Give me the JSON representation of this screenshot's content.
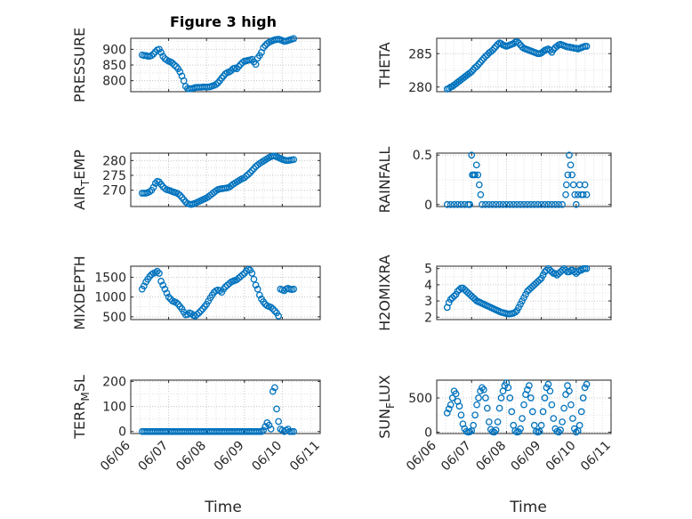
{
  "figure_title": "Figure 3 high",
  "x_axis_label": "Time",
  "x_tick_labels": [
    "06/06",
    "06/07",
    "06/08",
    "06/09",
    "06/10",
    "06/11"
  ],
  "marker_color": "#0072BD",
  "chart_data": [
    {
      "type": "scatter",
      "title": "Figure 3 high",
      "ylabel": "PRESSURE",
      "xlabel": "",
      "yticks": [
        800,
        850,
        900
      ],
      "ylim": [
        765,
        935
      ],
      "grid": true,
      "x": [
        6.3,
        6.35,
        6.4,
        6.45,
        6.5,
        6.55,
        6.6,
        6.65,
        6.7,
        6.75,
        6.8,
        6.85,
        6.9,
        6.95,
        7.0,
        7.05,
        7.1,
        7.15,
        7.2,
        7.25,
        7.3,
        7.35,
        7.4,
        7.45,
        7.5,
        7.55,
        7.6,
        7.65,
        7.7,
        7.75,
        7.8,
        7.85,
        7.9,
        7.95,
        8.0,
        8.05,
        8.1,
        8.15,
        8.2,
        8.25,
        8.3,
        8.35,
        8.4,
        8.45,
        8.5,
        8.55,
        8.6,
        8.65,
        8.7,
        8.75,
        8.8,
        8.85,
        8.9,
        8.95,
        9.0,
        9.05,
        9.1,
        9.15,
        9.2,
        9.25,
        9.3,
        9.35,
        9.4,
        9.45,
        9.5,
        9.55,
        9.6,
        9.65,
        9.7,
        9.75,
        9.8,
        9.85,
        9.9,
        9.95,
        10.0,
        10.05,
        10.1,
        10.15,
        10.2,
        10.25,
        10.3
      ],
      "y": [
        882,
        880,
        880,
        878,
        878,
        880,
        885,
        892,
        898,
        900,
        890,
        878,
        870,
        866,
        862,
        860,
        856,
        850,
        845,
        838,
        828,
        815,
        800,
        782,
        775,
        774,
        775,
        776,
        778,
        779,
        779,
        779,
        780,
        780,
        780,
        780,
        781,
        783,
        785,
        788,
        793,
        800,
        808,
        815,
        822,
        826,
        828,
        832,
        838,
        840,
        838,
        845,
        852,
        858,
        862,
        863,
        865,
        866,
        868,
        860,
        852,
        872,
        880,
        890,
        905,
        912,
        918,
        922,
        925,
        928,
        930,
        931,
        932,
        930,
        928,
        925,
        926,
        928,
        930,
        932,
        934
      ]
    },
    {
      "type": "scatter",
      "ylabel": "THETA",
      "xlabel": "",
      "yticks": [
        280,
        285
      ],
      "ylim": [
        279.3,
        287.3
      ],
      "grid": true,
      "x": [
        6.3,
        6.35,
        6.4,
        6.45,
        6.5,
        6.55,
        6.6,
        6.65,
        6.7,
        6.75,
        6.8,
        6.85,
        6.9,
        6.95,
        7.0,
        7.05,
        7.1,
        7.15,
        7.2,
        7.25,
        7.3,
        7.35,
        7.4,
        7.45,
        7.5,
        7.55,
        7.6,
        7.65,
        7.7,
        7.75,
        7.8,
        7.85,
        7.9,
        7.95,
        8.0,
        8.05,
        8.1,
        8.15,
        8.2,
        8.25,
        8.3,
        8.35,
        8.4,
        8.45,
        8.5,
        8.55,
        8.6,
        8.65,
        8.7,
        8.75,
        8.8,
        8.85,
        8.9,
        8.95,
        9.0,
        9.05,
        9.1,
        9.15,
        9.2,
        9.25,
        9.3,
        9.35,
        9.4,
        9.45,
        9.5,
        9.55,
        9.6,
        9.65,
        9.7,
        9.75,
        9.8,
        9.85,
        9.9,
        9.95,
        10.0,
        10.05,
        10.1,
        10.15,
        10.2,
        10.25,
        10.3
      ],
      "y": [
        279.7,
        279.8,
        280.0,
        280.1,
        280.3,
        280.5,
        280.7,
        280.9,
        281.1,
        281.3,
        281.5,
        281.7,
        281.9,
        282.1,
        282.3,
        282.6,
        282.9,
        283.1,
        283.4,
        283.7,
        284.0,
        284.3,
        284.6,
        284.8,
        285.1,
        285.3,
        285.5,
        285.8,
        286.1,
        286.4,
        286.6,
        286.5,
        286.3,
        286.2,
        286.1,
        286.2,
        286.3,
        286.4,
        286.5,
        286.7,
        286.8,
        286.6,
        286.3,
        286.0,
        285.8,
        285.7,
        285.6,
        285.5,
        285.4,
        285.3,
        285.2,
        285.1,
        285.0,
        285.0,
        285.1,
        285.3,
        285.5,
        285.6,
        285.7,
        285.5,
        285.2,
        285.6,
        285.9,
        286.1,
        286.3,
        286.4,
        286.3,
        286.2,
        286.1,
        286.0,
        286.0,
        285.9,
        285.9,
        285.8,
        285.8,
        285.7,
        285.8,
        285.9,
        286.0,
        286.1,
        286.1
      ]
    },
    {
      "type": "scatter",
      "ylabel": "AIR_TEMP",
      "xlabel": "",
      "yticks": [
        270,
        275,
        280
      ],
      "ylim": [
        264.5,
        282.5
      ],
      "grid": true,
      "x": [
        6.3,
        6.35,
        6.4,
        6.45,
        6.5,
        6.55,
        6.6,
        6.65,
        6.7,
        6.75,
        6.8,
        6.85,
        6.9,
        6.95,
        7.0,
        7.05,
        7.1,
        7.15,
        7.2,
        7.25,
        7.3,
        7.35,
        7.4,
        7.45,
        7.5,
        7.55,
        7.6,
        7.65,
        7.7,
        7.75,
        7.8,
        7.85,
        7.9,
        7.95,
        8.0,
        8.05,
        8.1,
        8.15,
        8.2,
        8.25,
        8.3,
        8.35,
        8.4,
        8.45,
        8.5,
        8.55,
        8.6,
        8.65,
        8.7,
        8.75,
        8.8,
        8.85,
        8.9,
        8.95,
        9.0,
        9.05,
        9.1,
        9.15,
        9.2,
        9.25,
        9.3,
        9.35,
        9.4,
        9.45,
        9.5,
        9.55,
        9.6,
        9.65,
        9.7,
        9.75,
        9.8,
        9.85,
        9.9,
        9.95,
        10.0,
        10.05,
        10.1,
        10.15,
        10.2,
        10.25,
        10.3
      ],
      "y": [
        269.0,
        269.0,
        269.0,
        269.2,
        269.5,
        270.0,
        271.0,
        272.3,
        273.0,
        272.8,
        272.0,
        271.2,
        270.6,
        270.2,
        270.0,
        269.8,
        269.5,
        269.3,
        269.1,
        268.8,
        268.3,
        267.6,
        266.8,
        266.0,
        265.5,
        265.3,
        265.2,
        265.4,
        265.6,
        265.9,
        266.2,
        266.5,
        266.8,
        267.1,
        267.4,
        267.8,
        268.3,
        268.8,
        269.3,
        269.8,
        270.2,
        270.4,
        270.5,
        270.6,
        270.7,
        270.8,
        271.0,
        271.5,
        272.0,
        272.4,
        272.8,
        273.2,
        273.6,
        273.9,
        274.2,
        274.8,
        275.3,
        275.9,
        276.6,
        277.3,
        278.0,
        278.5,
        279.0,
        279.4,
        279.8,
        280.2,
        280.6,
        281.0,
        281.3,
        281.5,
        281.5,
        281.3,
        281.0,
        280.7,
        280.4,
        280.2,
        280.0,
        280.0,
        280.1,
        280.2,
        280.3
      ]
    },
    {
      "type": "scatter",
      "ylabel": "RAINFALL",
      "xlabel": "",
      "yticks": [
        0,
        0.5
      ],
      "ylim": [
        -0.02,
        0.52
      ],
      "grid": true,
      "x": [
        6.3,
        6.4,
        6.5,
        6.6,
        6.7,
        6.8,
        6.9,
        6.95,
        7.0,
        7.02,
        7.06,
        7.1,
        7.14,
        7.18,
        7.22,
        7.26,
        7.3,
        7.4,
        7.5,
        7.6,
        7.7,
        7.8,
        7.9,
        8.0,
        8.1,
        8.2,
        8.3,
        8.4,
        8.5,
        8.6,
        8.7,
        8.8,
        8.9,
        9.0,
        9.1,
        9.2,
        9.3,
        9.4,
        9.5,
        9.6,
        9.7,
        9.72,
        9.76,
        9.8,
        9.84,
        9.88,
        9.92,
        9.96,
        10.0,
        10.05,
        10.1,
        10.15,
        10.2,
        10.25,
        10.3
      ],
      "y": [
        0,
        0,
        0,
        0,
        0,
        0,
        0,
        0,
        0.5,
        0.3,
        0.3,
        0.3,
        0.4,
        0.3,
        0.2,
        0.1,
        0,
        0,
        0,
        0,
        0,
        0,
        0,
        0,
        0,
        0,
        0,
        0,
        0,
        0,
        0,
        0,
        0,
        0,
        0,
        0,
        0,
        0,
        0,
        0,
        0.1,
        0.2,
        0.3,
        0.5,
        0.4,
        0.3,
        0.2,
        0.1,
        0,
        0.1,
        0.2,
        0.1,
        0.1,
        0.2,
        0.1
      ]
    },
    {
      "type": "scatter",
      "ylabel": "MIXDEPTH",
      "xlabel": "",
      "yticks": [
        500,
        1000,
        1500
      ],
      "ylim": [
        430,
        1780
      ],
      "grid": true,
      "x": [
        6.3,
        6.35,
        6.4,
        6.45,
        6.5,
        6.55,
        6.6,
        6.65,
        6.7,
        6.75,
        6.8,
        6.85,
        6.9,
        6.95,
        7.0,
        7.05,
        7.1,
        7.15,
        7.2,
        7.25,
        7.3,
        7.35,
        7.4,
        7.45,
        7.5,
        7.55,
        7.6,
        7.65,
        7.7,
        7.75,
        7.8,
        7.85,
        7.9,
        7.95,
        8.0,
        8.05,
        8.1,
        8.15,
        8.2,
        8.25,
        8.3,
        8.35,
        8.4,
        8.45,
        8.5,
        8.55,
        8.6,
        8.65,
        8.7,
        8.75,
        8.8,
        8.85,
        8.9,
        8.95,
        9.0,
        9.05,
        9.1,
        9.15,
        9.2,
        9.25,
        9.3,
        9.35,
        9.4,
        9.45,
        9.5,
        9.55,
        9.6,
        9.65,
        9.7,
        9.75,
        9.8,
        9.85,
        9.9,
        9.95,
        10.0,
        10.05,
        10.1,
        10.15,
        10.2,
        10.25,
        10.3
      ],
      "y": [
        1200,
        1280,
        1380,
        1450,
        1520,
        1570,
        1600,
        1620,
        1650,
        1600,
        1400,
        1300,
        1200,
        1100,
        1000,
        950,
        900,
        880,
        860,
        820,
        760,
        700,
        620,
        550,
        560,
        600,
        580,
        540,
        520,
        560,
        600,
        650,
        700,
        760,
        820,
        900,
        980,
        1050,
        1120,
        1160,
        1180,
        1160,
        1120,
        1200,
        1260,
        1300,
        1340,
        1380,
        1400,
        1420,
        1440,
        1480,
        1520,
        1560,
        1600,
        1660,
        1700,
        1680,
        1600,
        1450,
        1300,
        1200,
        1050,
        950,
        880,
        820,
        780,
        760,
        740,
        700,
        650,
        600,
        520,
        1200,
        1180,
        1160,
        1200,
        1220,
        1200,
        1190,
        1200
      ]
    },
    {
      "type": "scatter",
      "ylabel": "H2OMIXRA",
      "xlabel": "",
      "yticks": [
        2,
        3,
        4,
        5
      ],
      "ylim": [
        1.85,
        5.15
      ],
      "grid": true,
      "x": [
        6.3,
        6.35,
        6.4,
        6.45,
        6.5,
        6.55,
        6.6,
        6.65,
        6.7,
        6.75,
        6.8,
        6.85,
        6.9,
        6.95,
        7.0,
        7.05,
        7.1,
        7.15,
        7.2,
        7.25,
        7.3,
        7.35,
        7.4,
        7.45,
        7.5,
        7.55,
        7.6,
        7.65,
        7.7,
        7.75,
        7.8,
        7.85,
        7.9,
        7.95,
        8.0,
        8.05,
        8.1,
        8.15,
        8.2,
        8.25,
        8.3,
        8.35,
        8.4,
        8.45,
        8.5,
        8.55,
        8.6,
        8.65,
        8.7,
        8.75,
        8.8,
        8.85,
        8.9,
        8.95,
        9.0,
        9.05,
        9.1,
        9.15,
        9.2,
        9.25,
        9.3,
        9.35,
        9.4,
        9.45,
        9.5,
        9.55,
        9.6,
        9.65,
        9.7,
        9.75,
        9.8,
        9.85,
        9.9,
        9.95,
        10.0,
        10.05,
        10.1,
        10.15,
        10.2,
        10.25,
        10.3
      ],
      "y": [
        2.6,
        2.9,
        3.1,
        3.2,
        3.3,
        3.4,
        3.6,
        3.7,
        3.8,
        3.8,
        3.7,
        3.6,
        3.5,
        3.4,
        3.3,
        3.2,
        3.1,
        3.0,
        2.95,
        2.9,
        2.85,
        2.8,
        2.75,
        2.7,
        2.65,
        2.6,
        2.55,
        2.5,
        2.45,
        2.4,
        2.35,
        2.3,
        2.28,
        2.25,
        2.22,
        2.2,
        2.2,
        2.22,
        2.25,
        2.3,
        2.4,
        2.6,
        2.8,
        3.0,
        3.2,
        3.4,
        3.6,
        3.7,
        3.8,
        3.9,
        4.0,
        4.1,
        4.2,
        4.3,
        4.4,
        4.6,
        4.8,
        4.9,
        5.0,
        4.9,
        4.8,
        4.7,
        4.7,
        4.6,
        4.7,
        4.8,
        4.9,
        5.0,
        4.9,
        4.8,
        4.8,
        4.9,
        4.9,
        4.8,
        4.7,
        4.8,
        4.9,
        4.9,
        5.0,
        5.0,
        5.0
      ]
    },
    {
      "type": "scatter",
      "ylabel": "TERR_MSL",
      "xlabel": "Time",
      "yticks": [
        0,
        100,
        200
      ],
      "ylim": [
        -8,
        205
      ],
      "grid": true,
      "xticks": [
        "06/06",
        "06/07",
        "06/08",
        "06/09",
        "06/10",
        "06/11"
      ],
      "xlim": [
        6,
        11
      ],
      "x": [
        6.3,
        6.35,
        6.4,
        6.45,
        6.5,
        6.55,
        6.6,
        6.65,
        6.7,
        6.75,
        6.8,
        6.85,
        6.9,
        6.95,
        7.0,
        7.05,
        7.1,
        7.15,
        7.2,
        7.25,
        7.3,
        7.35,
        7.4,
        7.45,
        7.5,
        7.55,
        7.6,
        7.65,
        7.7,
        7.75,
        7.8,
        7.85,
        7.9,
        7.95,
        8.0,
        8.05,
        8.1,
        8.15,
        8.2,
        8.25,
        8.3,
        8.35,
        8.4,
        8.45,
        8.5,
        8.55,
        8.6,
        8.65,
        8.7,
        8.75,
        8.8,
        8.85,
        8.9,
        8.95,
        9.0,
        9.05,
        9.1,
        9.15,
        9.2,
        9.25,
        9.3,
        9.35,
        9.4,
        9.45,
        9.5,
        9.55,
        9.6,
        9.65,
        9.7,
        9.75,
        9.8,
        9.85,
        9.9,
        9.95,
        10.0,
        10.05,
        10.1,
        10.15,
        10.2,
        10.25,
        10.3
      ],
      "y": [
        0,
        0,
        0,
        0,
        0,
        0,
        0,
        0,
        0,
        0,
        0,
        0,
        0,
        0,
        0,
        0,
        0,
        0,
        0,
        0,
        0,
        0,
        0,
        0,
        0,
        0,
        0,
        0,
        0,
        0,
        0,
        0,
        0,
        0,
        0,
        0,
        0,
        0,
        0,
        0,
        0,
        0,
        0,
        0,
        0,
        0,
        0,
        0,
        0,
        0,
        0,
        0,
        0,
        0,
        0,
        0,
        0,
        0,
        0,
        0,
        0,
        0,
        0,
        0,
        5,
        20,
        35,
        25,
        10,
        160,
        175,
        90,
        40,
        10,
        5,
        0,
        5,
        10,
        0,
        0,
        0
      ]
    },
    {
      "type": "scatter",
      "ylabel": "SUN_FLUX",
      "xlabel": "Time",
      "yticks": [
        0,
        500
      ],
      "ylim": [
        -20,
        760
      ],
      "grid": true,
      "xticks": [
        "06/06",
        "06/07",
        "06/08",
        "06/09",
        "06/10",
        "06/11"
      ],
      "xlim": [
        6,
        11
      ],
      "x": [
        6.3,
        6.35,
        6.4,
        6.45,
        6.5,
        6.55,
        6.6,
        6.65,
        6.7,
        6.75,
        6.8,
        6.85,
        6.9,
        6.95,
        7.0,
        7.05,
        7.1,
        7.15,
        7.2,
        7.25,
        7.3,
        7.35,
        7.4,
        7.45,
        7.5,
        7.55,
        7.6,
        7.65,
        7.7,
        7.75,
        7.8,
        7.85,
        7.9,
        7.95,
        8.0,
        8.05,
        8.1,
        8.15,
        8.2,
        8.25,
        8.3,
        8.35,
        8.4,
        8.45,
        8.5,
        8.55,
        8.6,
        8.65,
        8.7,
        8.75,
        8.8,
        8.85,
        8.9,
        8.95,
        9.0,
        9.05,
        9.1,
        9.15,
        9.2,
        9.25,
        9.3,
        9.35,
        9.4,
        9.45,
        9.5,
        9.55,
        9.6,
        9.65,
        9.7,
        9.75,
        9.8,
        9.85,
        9.9,
        9.95,
        10.0,
        10.05,
        10.1,
        10.15,
        10.2,
        10.25,
        10.3
      ],
      "y": [
        280,
        340,
        400,
        500,
        600,
        560,
        450,
        380,
        250,
        120,
        50,
        10,
        0,
        5,
        20,
        100,
        250,
        400,
        500,
        600,
        650,
        620,
        500,
        350,
        150,
        40,
        5,
        0,
        30,
        150,
        350,
        500,
        600,
        680,
        720,
        650,
        500,
        300,
        100,
        20,
        0,
        5,
        50,
        200,
        400,
        550,
        620,
        680,
        500,
        300,
        100,
        10,
        0,
        10,
        100,
        300,
        500,
        650,
        700,
        600,
        400,
        200,
        50,
        10,
        0,
        30,
        150,
        350,
        550,
        680,
        600,
        400,
        200,
        50,
        0,
        20,
        100,
        300,
        500,
        650,
        700
      ]
    }
  ]
}
